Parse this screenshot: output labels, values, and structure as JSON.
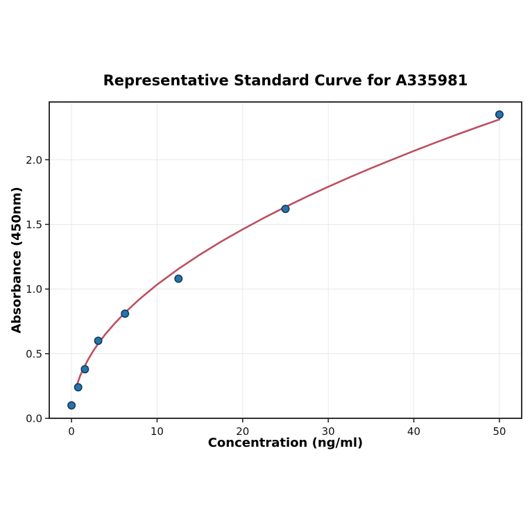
{
  "chart_data": {
    "type": "scatter",
    "title": "Representative Standard Curve for A335981",
    "xlabel": "Concentration (ng/ml)",
    "ylabel": "Absorbance (450nm)",
    "axes": {
      "xlim": [
        -2.6,
        52.6
      ],
      "ylim": [
        0,
        2.447
      ],
      "x_ticks": [
        0,
        10,
        20,
        30,
        40,
        50
      ],
      "x_tick_labels": [
        "0",
        "10",
        "20",
        "30",
        "40",
        "50"
      ],
      "y_ticks": [
        0.0,
        0.5,
        1.0,
        1.5,
        2.0
      ],
      "y_tick_labels": [
        "0.0",
        "0.5",
        "1.0",
        "1.5",
        "2.0"
      ],
      "grid": true,
      "legend": "none"
    },
    "series": [
      {
        "name": "standard-points",
        "type": "scatter",
        "x": [
          0,
          0.781,
          1.563,
          3.125,
          6.25,
          12.5,
          25,
          50
        ],
        "y": [
          0.1,
          0.24,
          0.38,
          0.6,
          0.81,
          1.08,
          1.62,
          2.35
        ]
      },
      {
        "name": "fit-curve",
        "type": "line",
        "x": [
          0.6,
          1,
          1.5,
          2,
          2.5,
          3.125,
          4,
          5,
          6.25,
          8,
          10,
          12.5,
          15,
          17.5,
          20,
          22.5,
          25,
          27.5,
          30,
          32.5,
          35,
          37.5,
          40,
          42.5,
          45,
          47.5,
          50
        ],
        "y": [
          0.253,
          0.327,
          0.4,
          0.462,
          0.517,
          0.578,
          0.654,
          0.731,
          0.818,
          0.925,
          1.034,
          1.156,
          1.266,
          1.368,
          1.462,
          1.551,
          1.635,
          1.715,
          1.791,
          1.864,
          1.935,
          2.002,
          2.068,
          2.132,
          2.194,
          2.254,
          2.312
        ]
      }
    ],
    "colors": {
      "point_fill": "#2474b0",
      "point_edge": "#173a57",
      "curve": "#bc4f61",
      "grid": "#e8e8e8",
      "spine": "#1a1a1a",
      "tick_text": "#111111",
      "background": "#ffffff"
    }
  }
}
